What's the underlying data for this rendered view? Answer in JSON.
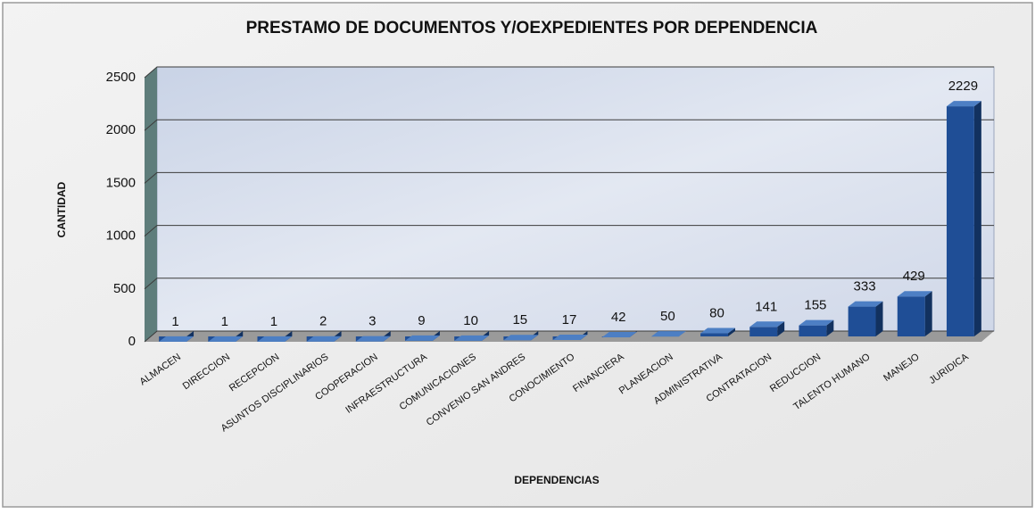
{
  "chart_data": {
    "type": "bar3d",
    "title": "PRESTAMO DE DOCUMENTOS Y/OEXPEDIENTES POR DEPENDENCIA",
    "x_label": "DEPENDENCIAS",
    "y_label": "CANTIDAD",
    "categories": [
      "ALMACEN",
      "DIRECCION",
      "RECEPCION",
      "ASUNTOS DISCIPLINARIOS",
      "COOPERACION",
      "INFRAESTRUCTURA",
      "COMUNICACIONES",
      "CONVENIO SAN ANDRES",
      "CONOCIMIENTO",
      "FINANCIERA",
      "PLANEACION",
      "ADMINISTRATIVA",
      "CONTRATACION",
      "REDUCCION",
      "TALENTO HUMANO",
      "MANEJO",
      "JURIDICA"
    ],
    "values": [
      1,
      1,
      1,
      2,
      3,
      9,
      10,
      15,
      17,
      42,
      50,
      80,
      141,
      155,
      333,
      429,
      2229
    ],
    "color": "#1f4e96",
    "ylim": [
      0,
      2500
    ],
    "yticks": [
      0,
      500,
      1000,
      1500,
      2000,
      2500
    ],
    "grid": true
  }
}
